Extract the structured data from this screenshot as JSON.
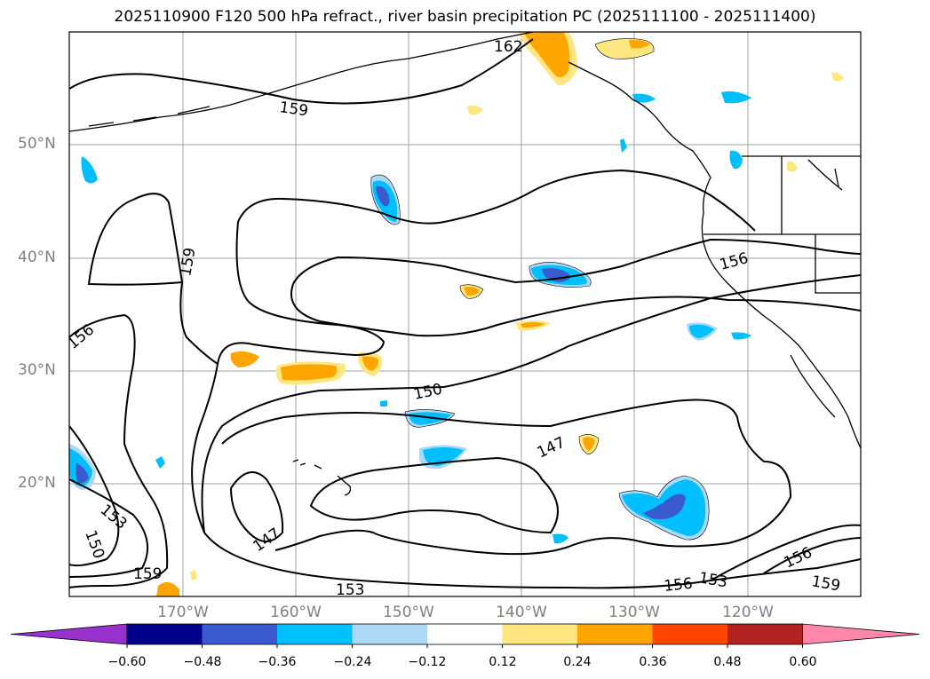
{
  "title": "2025110900 F120 500 hPa refract., river basin precipitation PC (2025111100 - 2025111400)",
  "map": {
    "lat_labels": [
      "50°N",
      "40°N",
      "30°N",
      "20°N"
    ],
    "lon_labels": [
      "170°W",
      "160°W",
      "150°W",
      "140°W",
      "130°W",
      "120°W"
    ],
    "contour_labels": [
      "162",
      "159",
      "159",
      "156",
      "156",
      "150",
      "147",
      "147",
      "153",
      "150",
      "159",
      "153",
      "156",
      "153",
      "156",
      "159"
    ]
  },
  "colorbar": {
    "tick_labels": [
      "−0.60",
      "−0.48",
      "−0.36",
      "−0.24",
      "−0.12",
      "0.12",
      "0.24",
      "0.36",
      "0.48",
      "0.60"
    ],
    "colors": [
      "#9932cc",
      "#00008b",
      "#3a5bd0",
      "#00bfff",
      "#add8f5",
      "#ffffff",
      "#ffe680",
      "#ffa500",
      "#ff4500",
      "#b22222",
      "#ff88aa"
    ]
  }
}
